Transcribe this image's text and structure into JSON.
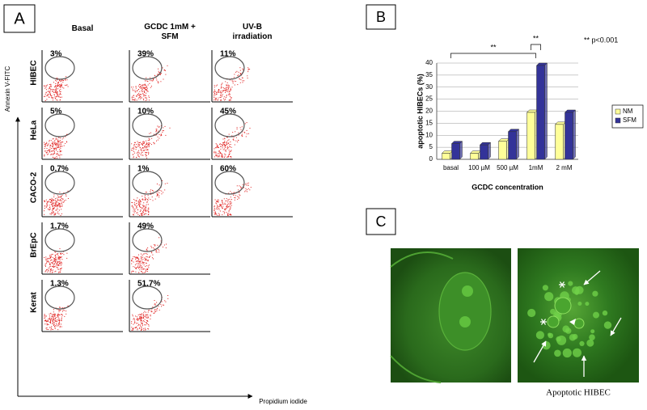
{
  "panel_a": {
    "label": "A",
    "columns": [
      "Basal",
      "GCDC 1mM + SFM",
      "UV-B irradiation"
    ],
    "rows": [
      {
        "name": "HIBEC",
        "percents": [
          "3%",
          "39%",
          "11%"
        ]
      },
      {
        "name": "HeLa",
        "percents": [
          "5%",
          "10%",
          "45%"
        ]
      },
      {
        "name": "CACO-2",
        "percents": [
          "0.7%",
          "1%",
          "60%"
        ]
      },
      {
        "name": "BrEpC",
        "percents": [
          "1.7%",
          "49%"
        ]
      },
      {
        "name": "Kerat",
        "percents": [
          "1.3%",
          "51.7%"
        ]
      }
    ],
    "y_axis_label": "Annexin V-FITC",
    "x_axis_label": "Propidium iodide"
  },
  "panel_b": {
    "label": "B"
  },
  "panel_c": {
    "label": "C",
    "caption": "Apoptotic HIBEC"
  },
  "chart_data": {
    "type": "bar",
    "y_label": "apoptotic HIBECs (%)",
    "x_label": "GCDC concentration",
    "categories": [
      "basal",
      "100 µM",
      "500 µM",
      "1mM",
      "2 mM"
    ],
    "series": [
      {
        "name": "NM",
        "color": "#ffff99",
        "values": [
          2.5,
          2.5,
          7.5,
          19.5,
          14.5
        ]
      },
      {
        "name": "SFM",
        "color": "#333399",
        "values": [
          6.5,
          6,
          11.5,
          39,
          19.5
        ]
      }
    ],
    "ylim": [
      0,
      40
    ],
    "yticks": [
      0,
      5,
      10,
      15,
      20,
      25,
      30,
      35,
      40
    ],
    "grid": true,
    "legend": "right",
    "annotations": [
      "**",
      "**",
      "** p<0.001"
    ]
  }
}
